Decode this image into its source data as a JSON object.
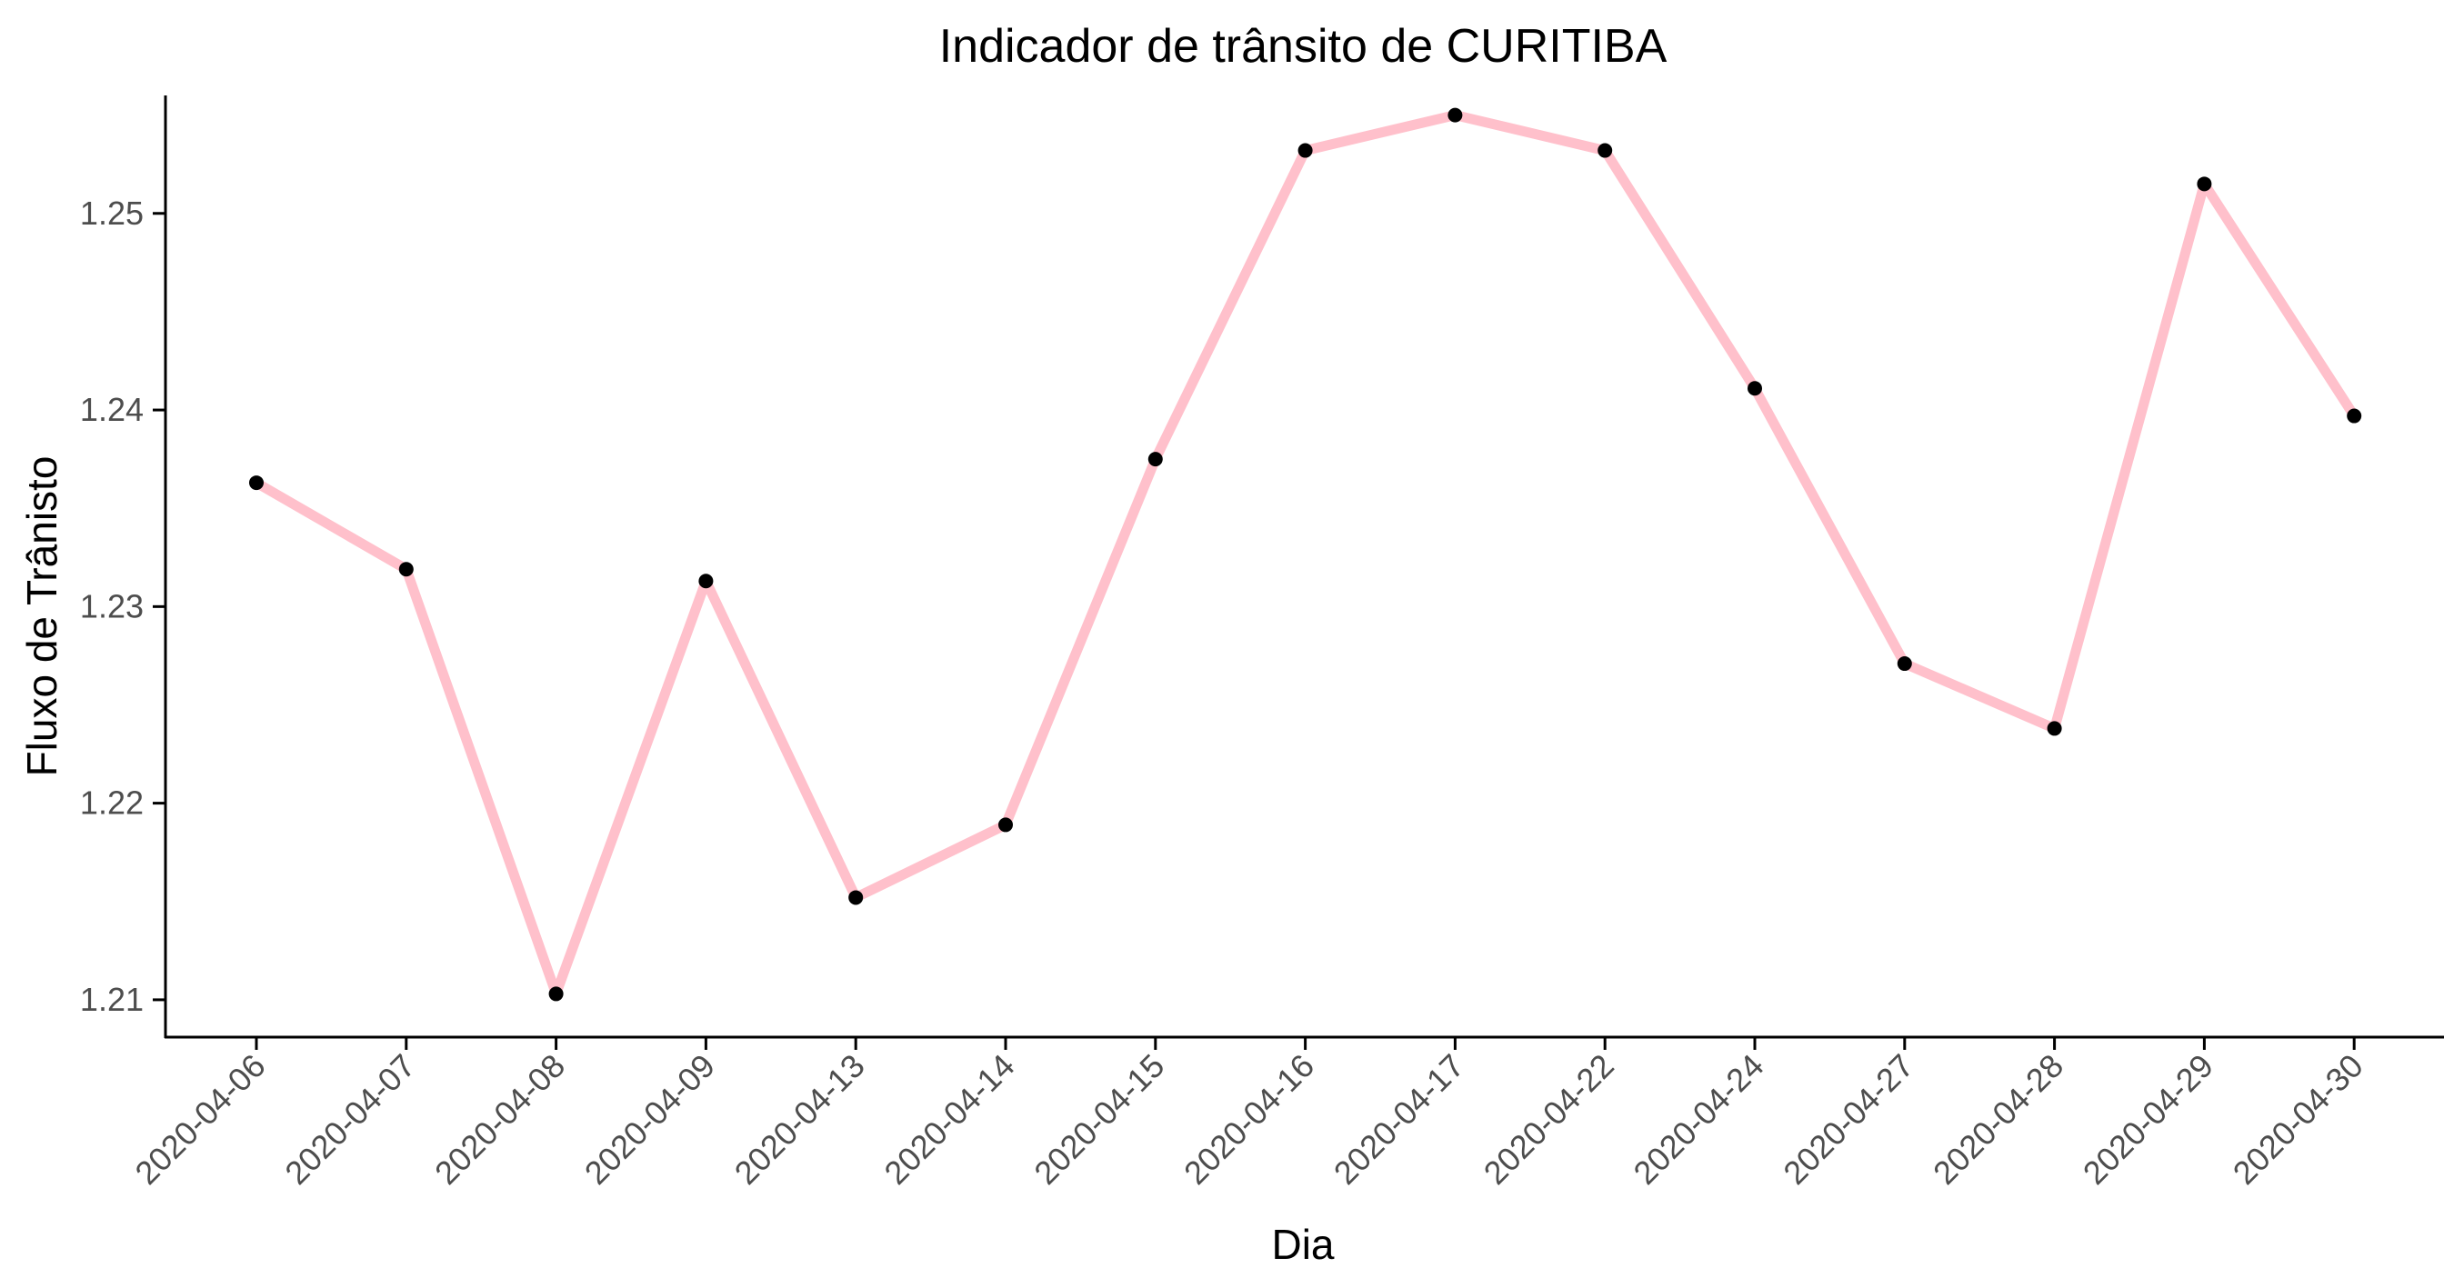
{
  "chart_data": {
    "type": "line",
    "title": "Indicador de trânsito de CURITIBA",
    "xlabel": "Dia",
    "ylabel": "Fluxo de Trânisto",
    "categories": [
      "2020-04-06",
      "2020-04-07",
      "2020-04-08",
      "2020-04-09",
      "2020-04-13",
      "2020-04-14",
      "2020-04-15",
      "2020-04-16",
      "2020-04-17",
      "2020-04-22",
      "2020-04-24",
      "2020-04-27",
      "2020-04-28",
      "2020-04-29",
      "2020-04-30"
    ],
    "series": [
      {
        "values": [
          1.2363,
          1.2319,
          1.2103,
          1.2313,
          1.2152,
          1.2189,
          1.2375,
          1.2532,
          1.255,
          1.2532,
          1.2411,
          1.2271,
          1.2238,
          1.2515,
          1.2397
        ]
      }
    ],
    "ylim": [
      1.2081,
      1.256
    ],
    "yticks": [
      1.21,
      1.22,
      1.23,
      1.24,
      1.25
    ],
    "ytick_labels": [
      "1.21",
      "1.22",
      "1.23",
      "1.24",
      "1.25"
    ],
    "grid": false,
    "colors": {
      "line": "#ffc0cb",
      "points": "#000000",
      "axis": "#000000",
      "tick_text": "#4d4d4d"
    }
  }
}
